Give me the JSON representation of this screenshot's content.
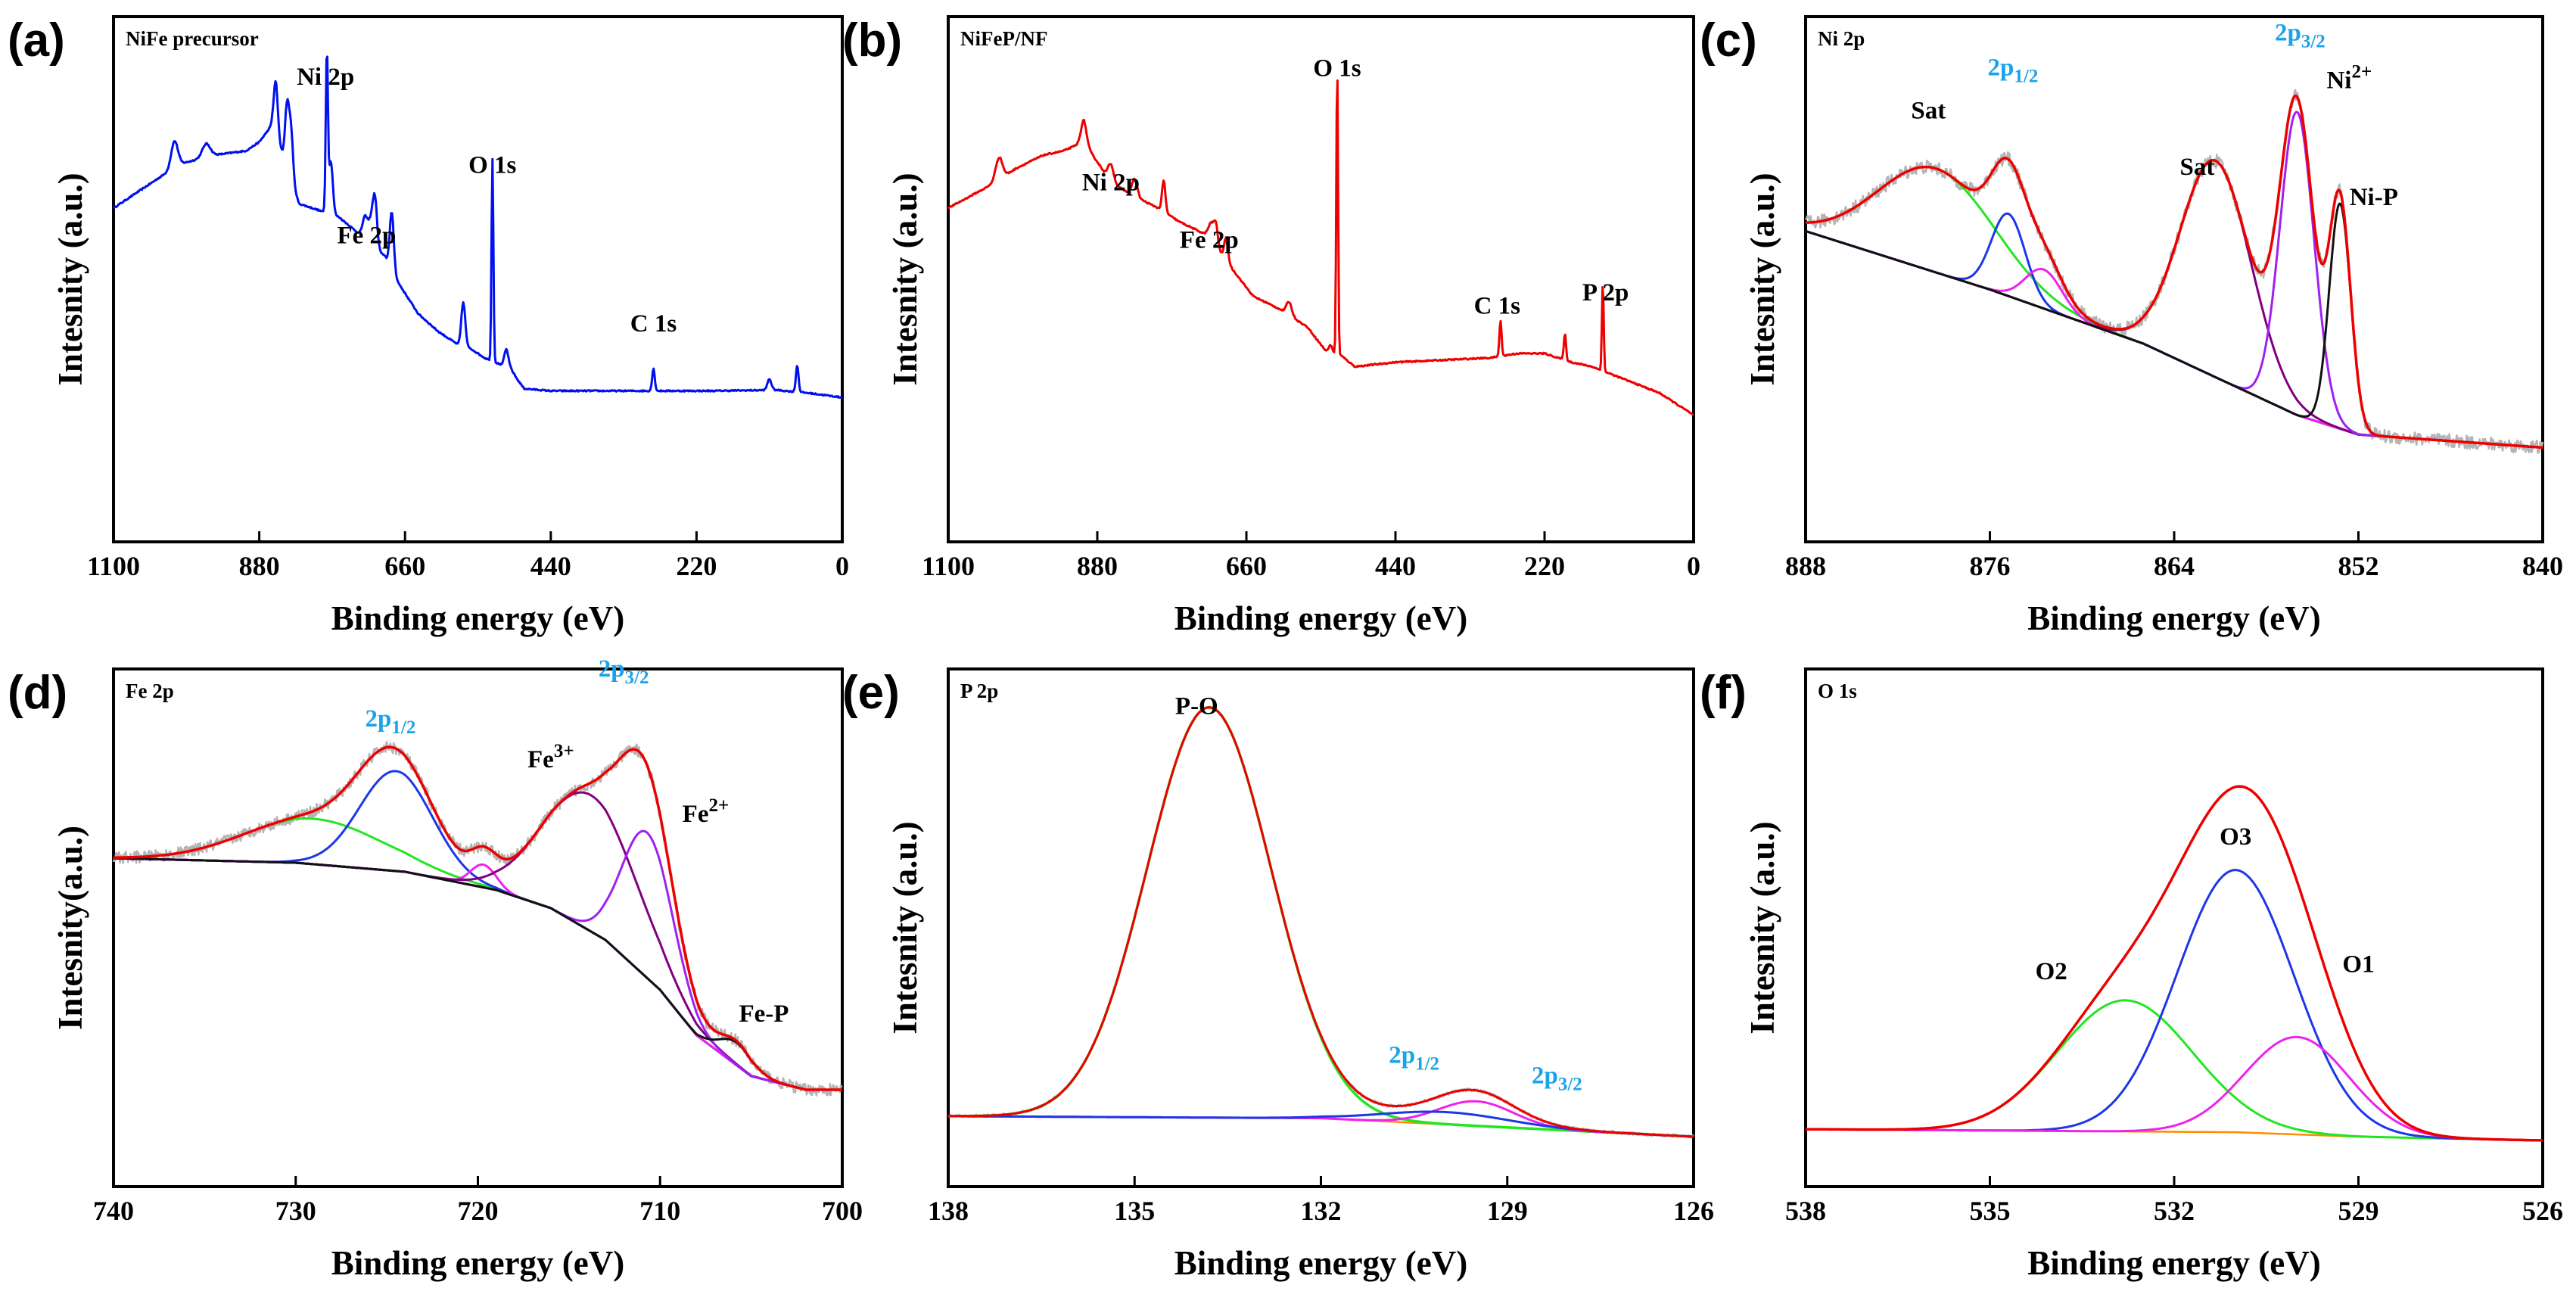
{
  "chart_data": [
    {
      "id": "a",
      "panel_label": "(a)",
      "title": "NiFe precursor",
      "type": "line",
      "xlabel": "Binding energy (eV)",
      "ylabel": "Intesnity (a.u.)",
      "xlim": [
        1100,
        0
      ],
      "ylim": [
        0,
        100
      ],
      "xticks": [
        "1100",
        "880",
        "660",
        "440",
        "220",
        "0"
      ],
      "series": [
        {
          "name": "survey",
          "color": "#0010ee",
          "width": 3,
          "noise": 0.15,
          "baseline": [
            [
              1100,
              61
            ],
            [
              1050,
              66
            ],
            [
              1000,
              71
            ],
            [
              950,
              73
            ],
            [
              900,
              74
            ],
            [
              880,
              76
            ],
            [
              860,
              80
            ],
            [
              820,
              62
            ],
            [
              760,
              59
            ],
            [
              720,
              54
            ],
            [
              690,
              50
            ],
            [
              670,
              44
            ],
            [
              640,
              37
            ],
            [
              610,
              33
            ],
            [
              580,
              30
            ],
            [
              560,
              29
            ],
            [
              540,
              27
            ],
            [
              500,
              24.5
            ],
            [
              490,
              22
            ],
            [
              480,
              20
            ],
            [
              440,
              19.5
            ],
            [
              200,
              19.5
            ],
            [
              100,
              19.7
            ],
            [
              50,
              19
            ],
            [
              0,
              18
            ]
          ],
          "peaks": [
            [
              1008,
              6,
              5
            ],
            [
              960,
              3,
              6
            ],
            [
              855,
              12,
              3
            ],
            [
              838,
              14,
              3
            ],
            [
              832,
              11,
              3
            ],
            [
              778,
              36,
              1.6
            ],
            [
              772,
              12,
              3
            ],
            [
              720,
              5,
              4
            ],
            [
              710,
              6,
              4
            ],
            [
              705,
              9,
              3
            ],
            [
              680,
              13,
              3
            ],
            [
              572,
              10,
              3
            ],
            [
              528,
              46,
              1.4
            ],
            [
              507,
              4,
              3
            ],
            [
              285,
              5,
              2
            ],
            [
              110,
              2.5,
              3
            ],
            [
              68,
              6,
              2
            ]
          ]
        }
      ],
      "annotations": [
        {
          "text": "Ni 2p",
          "x": 780,
          "y": 89,
          "color": "#000000",
          "anchor": "middle"
        },
        {
          "text": "O 1s",
          "x": 528,
          "y": 69,
          "color": "#000000",
          "anchor": "middle"
        },
        {
          "text": "Fe 2p",
          "x": 718,
          "y": 53,
          "color": "#000000",
          "anchor": "middle"
        },
        {
          "text": "C 1s",
          "x": 285,
          "y": 33,
          "color": "#000000",
          "anchor": "middle"
        }
      ]
    },
    {
      "id": "b",
      "panel_label": "(b)",
      "title": "NiFeP/NF",
      "type": "line",
      "xlabel": "Binding energy (eV)",
      "ylabel": "Intesnity (a.u.)",
      "xlim": [
        1100,
        0
      ],
      "ylim": [
        0,
        100
      ],
      "xticks": [
        "1100",
        "880",
        "660",
        "440",
        "220",
        "0"
      ],
      "series": [
        {
          "name": "survey",
          "color": "#ee0000",
          "width": 3,
          "noise": 0.15,
          "baseline": [
            [
              1100,
              61
            ],
            [
              1040,
              66
            ],
            [
              1000,
              70
            ],
            [
              960,
              73
            ],
            [
              930,
              74
            ],
            [
              900,
              76
            ],
            [
              860,
              67
            ],
            [
              830,
              64
            ],
            [
              790,
              61
            ],
            [
              760,
              58
            ],
            [
              720,
              55
            ],
            [
              700,
              51
            ],
            [
              680,
              47
            ],
            [
              650,
              41
            ],
            [
              610,
              38
            ],
            [
              570,
              34
            ],
            [
              540,
              28
            ],
            [
              520,
              27.5
            ],
            [
              500,
              25
            ],
            [
              440,
              26
            ],
            [
              300,
              27
            ],
            [
              260,
              28
            ],
            [
              220,
              28
            ],
            [
              180,
              26
            ],
            [
              150,
              25
            ],
            [
              100,
              22
            ],
            [
              50,
              19
            ],
            [
              0,
              14
            ]
          ],
          "peaks": [
            [
              1025,
              5,
              5
            ],
            [
              900,
              5,
              4
            ],
            [
              860,
              4,
              4
            ],
            [
              825,
              4,
              4
            ],
            [
              782,
              7,
              2.5
            ],
            [
              712,
              4,
              4
            ],
            [
              705,
              5,
              3
            ],
            [
              690,
              5,
              3
            ],
            [
              597,
              3,
              4
            ],
            [
              536,
              2,
              3
            ],
            [
              526,
              66,
              1.3
            ],
            [
              285,
              8,
              1.6
            ],
            [
              190,
              6,
              1.6
            ],
            [
              134,
              20,
              1.3
            ]
          ]
        }
      ],
      "annotations": [
        {
          "text": "O 1s",
          "x": 526,
          "y": 91,
          "color": "#000000",
          "anchor": "middle"
        },
        {
          "text": "Ni 2p",
          "x": 860,
          "y": 65,
          "color": "#000000",
          "anchor": "middle"
        },
        {
          "text": "Fe 2p",
          "x": 715,
          "y": 52,
          "color": "#000000",
          "anchor": "middle"
        },
        {
          "text": "C 1s",
          "x": 290,
          "y": 37,
          "color": "#000000",
          "anchor": "middle"
        },
        {
          "text": "P 2p",
          "x": 130,
          "y": 40,
          "color": "#000000",
          "anchor": "middle"
        }
      ]
    },
    {
      "id": "c",
      "panel_label": "(c)",
      "title": "Ni 2p",
      "type": "line",
      "xlabel": "Binding energy (eV)",
      "ylabel": "Intesnity (a.u.)",
      "xlim": [
        888,
        840
      ],
      "ylim": [
        0,
        100
      ],
      "xticks": [
        "888",
        "876",
        "864",
        "852",
        "840"
      ],
      "series": [
        {
          "name": "raw",
          "color": "#b4b4b4",
          "width": 2.5,
          "noise": 1.6,
          "sum": true
        },
        {
          "name": "background",
          "color": "#1c37e6",
          "width": 3,
          "baseline": [
            [
              888,
              55
            ],
            [
              876,
              41.5
            ],
            [
              866,
              29
            ],
            [
              856,
              12.5
            ],
            [
              852,
              8
            ],
            [
              844,
              6
            ],
            [
              840,
              5
            ]
          ]
        },
        {
          "name": "Sat",
          "color": "#22e622",
          "width": 3,
          "peaks": [
            [
              879.5,
              24,
              3.8
            ]
          ]
        },
        {
          "name": "2p1/2",
          "color": "#1c37e6",
          "width": 3,
          "peaks": [
            [
              874.8,
              19,
              1.1
            ]
          ]
        },
        {
          "name": "2p1/2 Ni-P",
          "color": "#ee22ee",
          "width": 3,
          "peaks": [
            [
              872.5,
              9,
              1.2
            ]
          ]
        },
        {
          "name": "Sat",
          "color": "#800080",
          "width": 3,
          "peaks": [
            [
              861.3,
              50,
              2.3
            ]
          ]
        },
        {
          "name": "Ni2+",
          "color": "#a020f0",
          "width": 3,
          "peaks": [
            [
              856.0,
              70,
              1.1
            ]
          ]
        },
        {
          "name": "Ni-P",
          "color": "#111111",
          "width": 3,
          "peaks": [
            [
              853.2,
              52,
              0.7
            ]
          ]
        },
        {
          "name": "fitted",
          "color": "#ee0000",
          "width": 3.5,
          "sum": true
        }
      ],
      "annotations": [
        {
          "text": "Sat",
          "x": 880,
          "y": 81,
          "color": "#000000",
          "anchor": "middle"
        },
        {
          "text": "2p1/2",
          "x": 874.5,
          "y": 91,
          "color": "#1aa3e8",
          "anchor": "middle"
        },
        {
          "text": "2p3/2",
          "x": 855.8,
          "y": 99,
          "color": "#1aa3e8",
          "anchor": "middle"
        },
        {
          "text": "Ni2+",
          "x": 852.6,
          "y": 88,
          "color": "#000000",
          "anchor": "middle"
        },
        {
          "text": "Sat",
          "x": 862.5,
          "y": 68,
          "color": "#000000",
          "anchor": "middle"
        },
        {
          "text": "Ni-P",
          "x": 851,
          "y": 61,
          "color": "#000000",
          "anchor": "middle"
        }
      ]
    },
    {
      "id": "d",
      "panel_label": "(d)",
      "title": "Fe 2p",
      "type": "line",
      "xlabel": "Binding energy (eV)",
      "ylabel": "Intesnity(a.u.)",
      "xlim": [
        740,
        700
      ],
      "ylim": [
        0,
        100
      ],
      "xticks": [
        "740",
        "730",
        "720",
        "710",
        "700"
      ],
      "series": [
        {
          "name": "raw",
          "color": "#b4b4b4",
          "width": 2.5,
          "noise": 1.3,
          "sum": true
        },
        {
          "name": "background",
          "color": "#6a0d7a",
          "width": 3,
          "baseline": [
            [
              740,
              61
            ],
            [
              730,
              60
            ],
            [
              724,
              58
            ],
            [
              719,
              54
            ],
            [
              716,
              50
            ],
            [
              713,
              43
            ],
            [
              710,
              32
            ],
            [
              708,
              22
            ],
            [
              705,
              13
            ],
            [
              702,
              10
            ],
            [
              700,
              10
            ]
          ]
        },
        {
          "name": "Sat",
          "color": "#22e622",
          "width": 3,
          "peaks": [
            [
              729,
              10,
              3.8
            ]
          ]
        },
        {
          "name": "2p1/2",
          "color": "#1c37e6",
          "width": 3,
          "peaks": [
            [
              724.5,
              22,
              2.0
            ]
          ]
        },
        {
          "name": "2p1/2 Fe-P",
          "color": "#ee22ee",
          "width": 3,
          "peaks": [
            [
              719.7,
              5,
              0.7
            ]
          ]
        },
        {
          "name": "Fe3+",
          "color": "#800080",
          "width": 3,
          "peaks": [
            [
              713.8,
              30,
              2.6
            ]
          ]
        },
        {
          "name": "Fe2+",
          "color": "#a020f0",
          "width": 3,
          "peaks": [
            [
              710.7,
              32,
              1.4
            ]
          ]
        },
        {
          "name": "Fe-P",
          "color": "#111111",
          "width": 3,
          "peaks": [
            [
              705.8,
              5,
              0.9
            ]
          ]
        },
        {
          "name": "fitted",
          "color": "#ee0000",
          "width": 3.5,
          "sum": true
        }
      ],
      "annotations": [
        {
          "text": "2p1/2",
          "x": 724.8,
          "y": 90,
          "color": "#1aa3e8",
          "anchor": "middle"
        },
        {
          "text": "2p3/2",
          "x": 712,
          "y": 101,
          "color": "#1aa3e8",
          "anchor": "middle"
        },
        {
          "text": "Fe3+",
          "x": 716,
          "y": 81,
          "color": "#000000",
          "anchor": "middle"
        },
        {
          "text": "Fe2+",
          "x": 707.5,
          "y": 69,
          "color": "#000000",
          "anchor": "middle"
        },
        {
          "text": "Fe-P",
          "x": 704.3,
          "y": 25,
          "color": "#000000",
          "anchor": "middle"
        }
      ]
    },
    {
      "id": "e",
      "panel_label": "(e)",
      "title": "P 2p",
      "type": "line",
      "xlabel": "Binding energy (eV)",
      "ylabel": "Intesnity (a.u.)",
      "xlim": [
        138,
        126
      ],
      "ylim": [
        0,
        100
      ],
      "xticks": [
        "138",
        "135",
        "132",
        "129",
        "126"
      ],
      "series": [
        {
          "name": "raw",
          "color": "#b4b4b4",
          "width": 2.5,
          "noise": 0.35,
          "sum": true
        },
        {
          "name": "background",
          "color": "#ff8c00",
          "width": 2.5,
          "baseline": [
            [
              138,
              5
            ],
            [
              132,
              4.5
            ],
            [
              126,
              0
            ]
          ]
        },
        {
          "name": "P-O",
          "color": "#22e622",
          "width": 3.5,
          "peaks": [
            [
              133.8,
              100,
              1.0
            ]
          ]
        },
        {
          "name": "2p3/2",
          "color": "#ee22ee",
          "width": 3,
          "peaks": [
            [
              129.5,
              6,
              0.6
            ]
          ]
        },
        {
          "name": "2p1/2",
          "color": "#1c37e6",
          "width": 3,
          "peaks": [
            [
              130.0,
              3,
              1.0
            ]
          ]
        },
        {
          "name": "fitted",
          "color": "#ee0000",
          "width": 3,
          "sum": true
        }
      ],
      "annotations": [
        {
          "text": "P-O",
          "x": 134,
          "y": 103,
          "color": "#000000",
          "anchor": "middle"
        },
        {
          "text": "2p1/2",
          "x": 130.5,
          "y": 18,
          "color": "#1aa3e8",
          "anchor": "middle"
        },
        {
          "text": "2p3/2",
          "x": 128.2,
          "y": 13,
          "color": "#1aa3e8",
          "anchor": "middle"
        }
      ]
    },
    {
      "id": "f",
      "panel_label": "(f)",
      "title": "O 1s",
      "type": "line",
      "xlabel": "Binding energy (eV)",
      "ylabel": "Intesnity (a.u.)",
      "xlim": [
        538,
        526
      ],
      "ylim": [
        0,
        100
      ],
      "xticks": [
        "538",
        "535",
        "532",
        "529",
        "526"
      ],
      "series": [
        {
          "name": "background",
          "color": "#ff8c00",
          "width": 2.5,
          "baseline": [
            [
              538,
              3
            ],
            [
              531,
              2.2
            ],
            [
              529,
              1
            ],
            [
              526,
              0
            ]
          ]
        },
        {
          "name": "O2",
          "color": "#22e622",
          "width": 3,
          "peaks": [
            [
              532.8,
              35,
              1.1
            ]
          ]
        },
        {
          "name": "O3",
          "color": "#1c37e6",
          "width": 3,
          "peaks": [
            [
              531.0,
              70,
              0.95
            ]
          ]
        },
        {
          "name": "O1",
          "color": "#ee22ee",
          "width": 3,
          "peaks": [
            [
              530.0,
              26,
              0.85
            ]
          ]
        },
        {
          "name": "fitted",
          "color": "#ee0000",
          "width": 3.5,
          "sum": true
        }
      ],
      "annotations": [
        {
          "text": "O3",
          "x": 531,
          "y": 79,
          "color": "#000000",
          "anchor": "middle"
        },
        {
          "text": "O2",
          "x": 534,
          "y": 43,
          "color": "#000000",
          "anchor": "middle"
        },
        {
          "text": "O1",
          "x": 529,
          "y": 45,
          "color": "#000000",
          "anchor": "middle"
        }
      ]
    }
  ]
}
